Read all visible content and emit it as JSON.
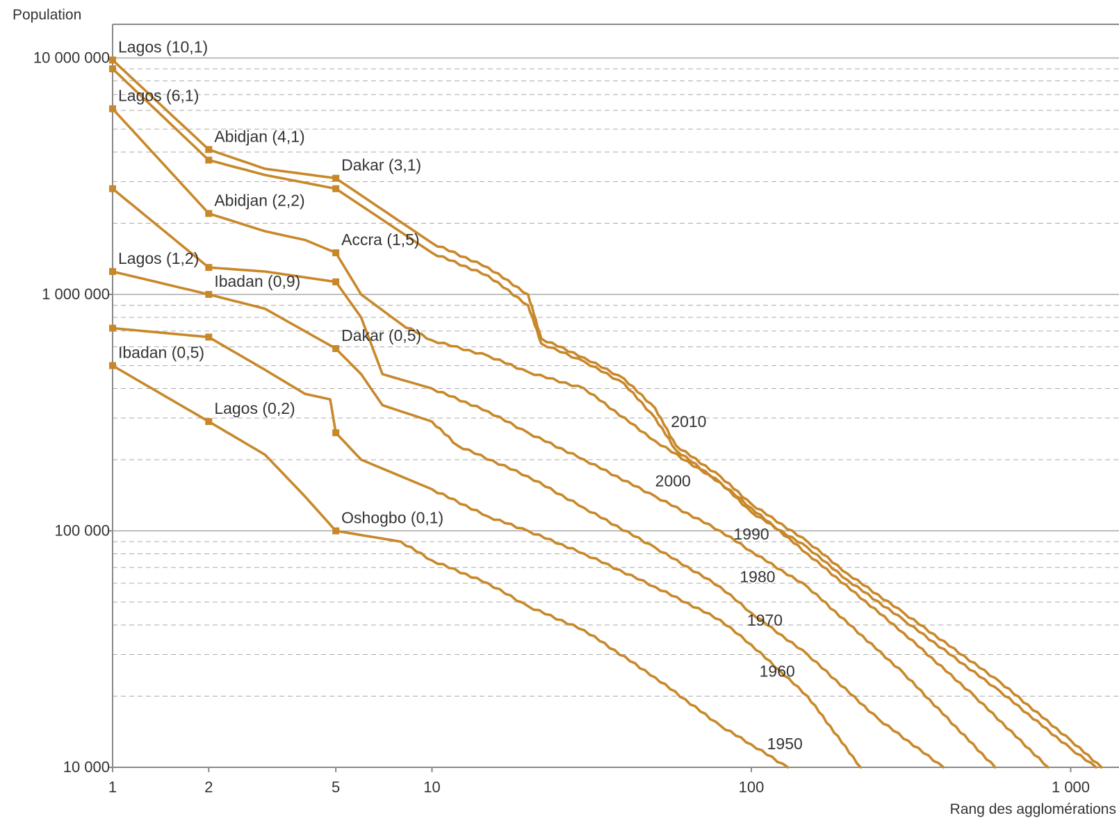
{
  "chart_data": {
    "type": "line",
    "title": "",
    "ylabel": "Population",
    "xlabel": "Rang des agglomérations",
    "x_scale": "log",
    "y_scale": "log",
    "xlim": [
      1,
      1200
    ],
    "ylim": [
      10000,
      15000000
    ],
    "x_ticks": [
      {
        "value": 1,
        "label": "1"
      },
      {
        "value": 2,
        "label": "2"
      },
      {
        "value": 5,
        "label": "5"
      },
      {
        "value": 10,
        "label": "10"
      },
      {
        "value": 100,
        "label": "100"
      },
      {
        "value": 1000,
        "label": "1 000"
      }
    ],
    "y_ticks": [
      {
        "value": 10000,
        "label": "10 000"
      },
      {
        "value": 100000,
        "label": "100 000"
      },
      {
        "value": 1000000,
        "label": "1 000 000"
      },
      {
        "value": 10000000,
        "label": "10 000 000"
      }
    ],
    "grid": "major solid, minor dashed",
    "line_color": "#c8882a",
    "series": [
      {
        "name": "1950",
        "points": [
          [
            1,
            500000
          ],
          [
            2,
            290000
          ],
          [
            3,
            210000
          ],
          [
            4,
            140000
          ],
          [
            5,
            100000
          ],
          [
            8,
            90000
          ],
          [
            10,
            75000
          ],
          [
            15,
            60000
          ],
          [
            20,
            48000
          ],
          [
            30,
            38000
          ],
          [
            50,
            24000
          ],
          [
            80,
            15000
          ],
          [
            100,
            12500
          ],
          [
            130,
            10000
          ]
        ]
      },
      {
        "name": "1960",
        "points": [
          [
            1,
            720000
          ],
          [
            2,
            660000
          ],
          [
            3,
            480000
          ],
          [
            4,
            380000
          ],
          [
            4.8,
            360000
          ],
          [
            5,
            260000
          ],
          [
            6,
            200000
          ],
          [
            10,
            150000
          ],
          [
            15,
            115000
          ],
          [
            20,
            100000
          ],
          [
            30,
            80000
          ],
          [
            50,
            58000
          ],
          [
            80,
            42000
          ],
          [
            100,
            33000
          ],
          [
            150,
            20000
          ],
          [
            220,
            10000
          ]
        ]
      },
      {
        "name": "1970",
        "points": [
          [
            1,
            1250000
          ],
          [
            2,
            1000000
          ],
          [
            3,
            870000
          ],
          [
            5,
            590000
          ],
          [
            6,
            460000
          ],
          [
            7,
            340000
          ],
          [
            10,
            290000
          ],
          [
            12,
            230000
          ],
          [
            20,
            170000
          ],
          [
            30,
            125000
          ],
          [
            50,
            85000
          ],
          [
            80,
            58000
          ],
          [
            100,
            45000
          ],
          [
            150,
            30000
          ],
          [
            250,
            16000
          ],
          [
            400,
            10000
          ]
        ]
      },
      {
        "name": "1980",
        "points": [
          [
            1,
            2800000
          ],
          [
            2,
            1300000
          ],
          [
            3,
            1250000
          ],
          [
            5,
            1130000
          ],
          [
            6,
            800000
          ],
          [
            7,
            460000
          ],
          [
            10,
            400000
          ],
          [
            15,
            320000
          ],
          [
            20,
            260000
          ],
          [
            30,
            200000
          ],
          [
            50,
            140000
          ],
          [
            80,
            100000
          ],
          [
            100,
            82000
          ],
          [
            150,
            58000
          ],
          [
            300,
            25000
          ],
          [
            580,
            10000
          ]
        ]
      },
      {
        "name": "1990",
        "points": [
          [
            1,
            6100000
          ],
          [
            2,
            2200000
          ],
          [
            3,
            1850000
          ],
          [
            4,
            1700000
          ],
          [
            5,
            1500000
          ],
          [
            6,
            1000000
          ],
          [
            8,
            750000
          ],
          [
            10,
            640000
          ],
          [
            15,
            550000
          ],
          [
            20,
            470000
          ],
          [
            30,
            400000
          ],
          [
            50,
            240000
          ],
          [
            80,
            160000
          ],
          [
            100,
            125000
          ],
          [
            150,
            80000
          ],
          [
            300,
            37000
          ],
          [
            500,
            20000
          ],
          [
            850,
            10000
          ]
        ]
      },
      {
        "name": "2000",
        "points": [
          [
            1,
            9000000
          ],
          [
            2,
            3700000
          ],
          [
            3,
            3200000
          ],
          [
            5,
            2800000
          ],
          [
            10,
            1500000
          ],
          [
            15,
            1200000
          ],
          [
            20,
            900000
          ],
          [
            22,
            620000
          ],
          [
            30,
            520000
          ],
          [
            40,
            420000
          ],
          [
            50,
            300000
          ],
          [
            58,
            220000
          ],
          [
            80,
            160000
          ],
          [
            100,
            120000
          ],
          [
            150,
            85000
          ],
          [
            200,
            62000
          ],
          [
            300,
            42000
          ],
          [
            600,
            21000
          ],
          [
            1000,
            12000
          ],
          [
            1200,
            10000
          ]
        ]
      },
      {
        "name": "2010",
        "points": [
          [
            1,
            9800000
          ],
          [
            2,
            4100000
          ],
          [
            3,
            3400000
          ],
          [
            5,
            3100000
          ],
          [
            10,
            1650000
          ],
          [
            15,
            1300000
          ],
          [
            20,
            1000000
          ],
          [
            22,
            650000
          ],
          [
            30,
            540000
          ],
          [
            40,
            440000
          ],
          [
            50,
            330000
          ],
          [
            58,
            230000
          ],
          [
            80,
            170000
          ],
          [
            100,
            130000
          ],
          [
            150,
            90000
          ],
          [
            200,
            66000
          ],
          [
            300,
            45000
          ],
          [
            600,
            23000
          ],
          [
            1000,
            13000
          ],
          [
            1250,
            10000
          ]
        ]
      }
    ],
    "annotations": [
      {
        "text": "Lagos (10,1)",
        "x": 1,
        "y": 9800000
      },
      {
        "text": "Lagos (6,1)",
        "x": 1,
        "y": 6100000
      },
      {
        "text": "Abidjan (4,1)",
        "x": 2,
        "y": 4100000
      },
      {
        "text": "Dakar (3,1)",
        "x": 5,
        "y": 3100000
      },
      {
        "text": "Abidjan (2,2)",
        "x": 2,
        "y": 2200000
      },
      {
        "text": "Accra (1,5)",
        "x": 5,
        "y": 1500000
      },
      {
        "text": "Lagos (1,2)",
        "x": 1,
        "y": 1250000
      },
      {
        "text": "Ibadan (0,9)",
        "x": 2,
        "y": 1000000
      },
      {
        "text": "Dakar (0,5)",
        "x": 5,
        "y": 590000
      },
      {
        "text": "Ibadan (0,5)",
        "x": 1,
        "y": 500000
      },
      {
        "text": "Lagos (0,2)",
        "x": 2,
        "y": 290000
      },
      {
        "text": "Oshogbo (0,1)",
        "x": 5,
        "y": 100000
      }
    ],
    "extra_markers": [
      {
        "x": 1,
        "y": 2800000
      },
      {
        "x": 1,
        "y": 720000
      },
      {
        "x": 2,
        "y": 660000
      },
      {
        "x": 5,
        "y": 1130000
      },
      {
        "x": 5,
        "y": 260000
      },
      {
        "x": 2,
        "y": 1300000
      },
      {
        "x": 1,
        "y": 9000000
      },
      {
        "x": 2,
        "y": 3700000
      },
      {
        "x": 5,
        "y": 2800000
      }
    ],
    "year_labels": [
      {
        "text": "2010",
        "x": 56,
        "y": 290000
      },
      {
        "text": "2000",
        "x": 50,
        "y": 163000
      },
      {
        "text": "1990",
        "x": 88,
        "y": 97000
      },
      {
        "text": "1980",
        "x": 92,
        "y": 64000
      },
      {
        "text": "1970",
        "x": 97,
        "y": 42000
      },
      {
        "text": "1960",
        "x": 106,
        "y": 25500
      },
      {
        "text": "1950",
        "x": 112,
        "y": 12600
      }
    ]
  }
}
